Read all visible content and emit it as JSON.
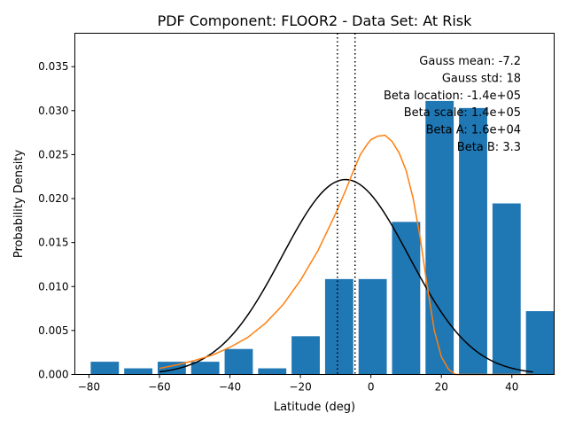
{
  "chart_data": {
    "type": "bar",
    "title": "PDF Component: FLOOR2 - Data Set: At Risk",
    "xlabel": "Latitude (deg)",
    "ylabel": "Probability Density",
    "xlim": [
      -84,
      52
    ],
    "ylim": [
      0,
      0.0388
    ],
    "xticks": [
      -80,
      -60,
      -40,
      -20,
      0,
      20,
      40
    ],
    "xtick_labels": [
      "−80",
      "−60",
      "−40",
      "−20",
      "0",
      "20",
      "40"
    ],
    "yticks": [
      0,
      0.005,
      0.01,
      0.015,
      0.02,
      0.025,
      0.03,
      0.035
    ],
    "ytick_labels": [
      "0.000",
      "0.005",
      "0.010",
      "0.015",
      "0.020",
      "0.025",
      "0.030",
      "0.035"
    ],
    "bar_width": 8,
    "bars": [
      {
        "x": -75.5,
        "value": 0.00145
      },
      {
        "x": -66,
        "value": 0.0007
      },
      {
        "x": -56.5,
        "value": 0.00145
      },
      {
        "x": -47,
        "value": 0.00145
      },
      {
        "x": -37.5,
        "value": 0.0029
      },
      {
        "x": -28,
        "value": 0.0007
      },
      {
        "x": -18.5,
        "value": 0.00435
      },
      {
        "x": -9,
        "value": 0.01085
      },
      {
        "x": 0.5,
        "value": 0.01085
      },
      {
        "x": 10,
        "value": 0.01735
      },
      {
        "x": 19.5,
        "value": 0.0311
      },
      {
        "x": 29,
        "value": 0.0303
      },
      {
        "x": 38.5,
        "value": 0.01945
      },
      {
        "x": 48,
        "value": 0.0072
      }
    ],
    "series": [
      {
        "kind": "gauss",
        "color": "#000000",
        "mean": -7.2,
        "std": 18,
        "x_range": [
          -60,
          46
        ]
      },
      {
        "kind": "beta",
        "color": "#ff7f0e",
        "x": [
          -60,
          -55,
          -50,
          -45,
          -40,
          -35,
          -30,
          -25,
          -20,
          -15,
          -10,
          -7,
          -5,
          -3,
          -1,
          0,
          2,
          4,
          6,
          8,
          10,
          12,
          14,
          16,
          18,
          20,
          22,
          24,
          26,
          30,
          40,
          46
        ],
        "y": [
          0.0007,
          0.0011,
          0.0016,
          0.0022,
          0.0031,
          0.0042,
          0.0058,
          0.0079,
          0.0107,
          0.0141,
          0.0183,
          0.0211,
          0.0231,
          0.025,
          0.0262,
          0.0267,
          0.0271,
          0.0272,
          0.0265,
          0.0252,
          0.0232,
          0.02,
          0.0155,
          0.01,
          0.005,
          0.002,
          0.0006,
          0.0,
          0.0,
          0.0,
          0.0,
          0.0
        ]
      }
    ],
    "vlines": [
      -9.5,
      -4.5
    ],
    "annotations": [
      "Gauss mean: -7.2",
      "Gauss std: 18",
      "Beta location: -1.4e+05",
      "Beta scale: 1.4e+05",
      "Beta A: 1.6e+04",
      "Beta B: 3.3"
    ],
    "colors": {
      "bars": "#1f77b4",
      "gauss": "#000000",
      "beta": "#ff7f0e"
    }
  }
}
